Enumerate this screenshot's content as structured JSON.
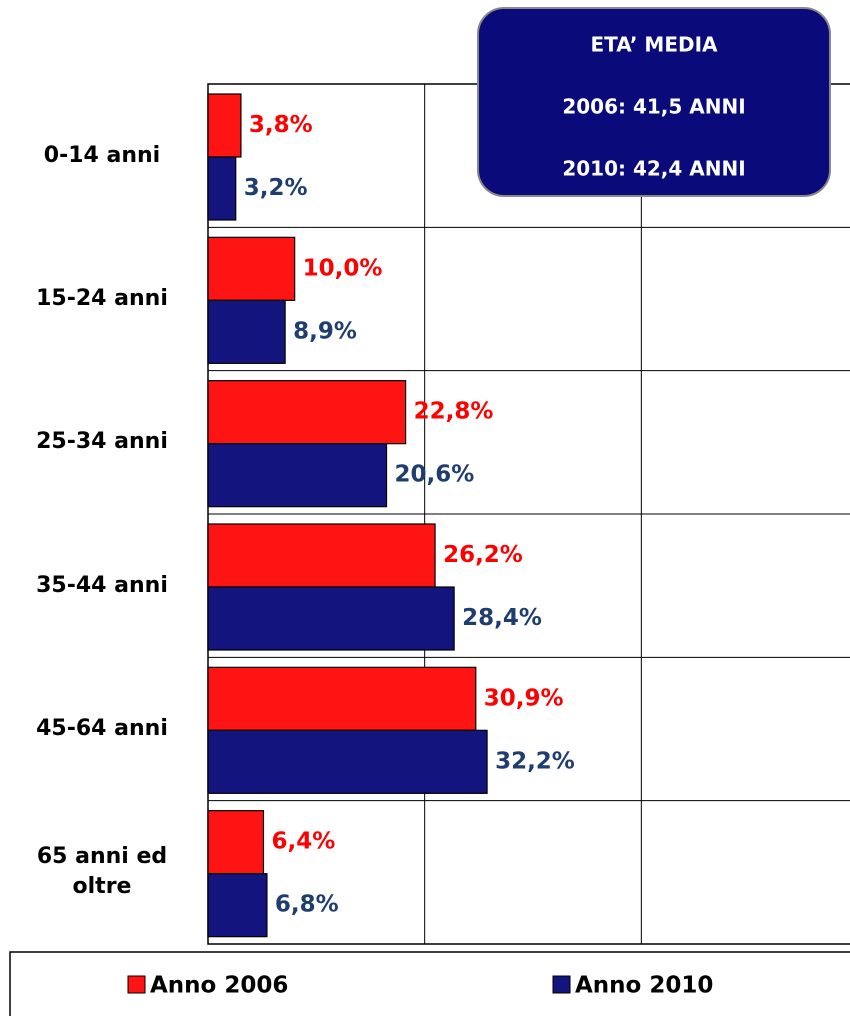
{
  "chart_data": {
    "type": "hbar",
    "categories": [
      "0-14 anni",
      "15-24 anni",
      "25-34 anni",
      "35-44 anni",
      "45-64 anni",
      "65 anni ed oltre"
    ],
    "series": [
      {
        "name": "Anno 2006",
        "color": "#ff1414",
        "label_color": "#ff0000",
        "values": [
          3.8,
          10.0,
          22.8,
          26.2,
          30.9,
          6.4
        ],
        "value_labels": [
          "3,8%",
          "10,0%",
          "22,8%",
          "26,2%",
          "30,9%",
          "6,4%"
        ]
      },
      {
        "name": "Anno 2010",
        "color": "#14147f",
        "label_color": "#1f3d6e",
        "values": [
          3.2,
          8.9,
          20.6,
          28.4,
          32.2,
          6.8
        ],
        "value_labels": [
          "3,2%",
          "8,9%",
          "20,6%",
          "28,4%",
          "32,2%",
          "6,8%"
        ]
      }
    ],
    "xlim": [
      0,
      75
    ],
    "xticks": [
      0,
      25,
      50,
      75
    ],
    "grid": true,
    "annotations": [
      "ETA’ MEDIA",
      "2006: 41,5 ANNI",
      "2010: 42,4 ANNI"
    ]
  }
}
